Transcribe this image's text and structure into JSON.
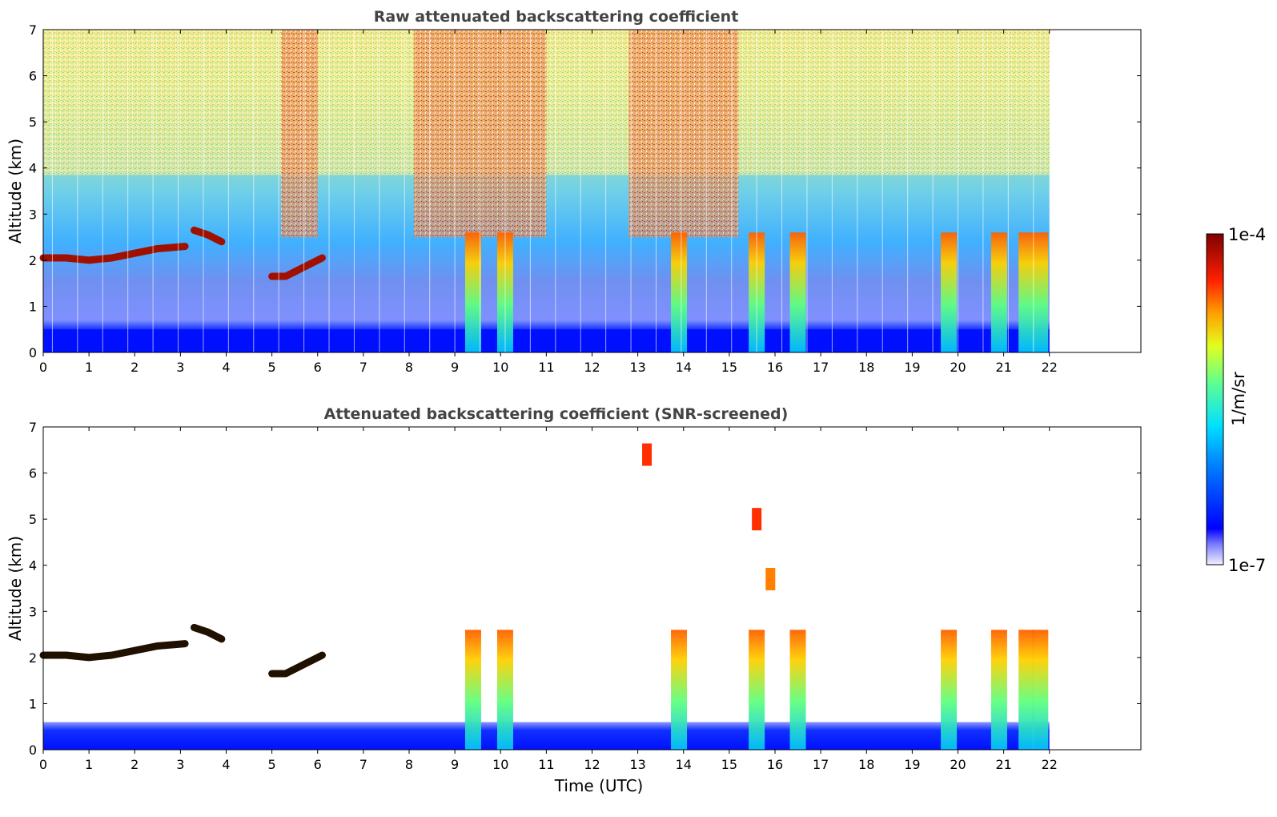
{
  "chart_data": [
    {
      "type": "heatmap",
      "title": "Raw attenuated backscattering coefficient",
      "xlabel": "",
      "ylabel": "Altitude (km)",
      "xlim": [
        0,
        24
      ],
      "ylim": [
        0,
        7
      ],
      "xticks": [
        "0",
        "1",
        "2",
        "3",
        "4",
        "5",
        "6",
        "7",
        "8",
        "9",
        "10",
        "11",
        "12",
        "13",
        "14",
        "15",
        "16",
        "17",
        "18",
        "19",
        "20",
        "21",
        "22"
      ],
      "yticks": [
        "0",
        "1",
        "2",
        "3",
        "4",
        "5",
        "6",
        "7"
      ],
      "data_end_hour": 22,
      "grid": false,
      "features": {
        "boundary_layer_top_km": 0.5,
        "cloud_layer": [
          [
            0,
            2.05
          ],
          [
            0.5,
            2.05
          ],
          [
            1,
            2.0
          ],
          [
            1.5,
            2.05
          ],
          [
            2,
            2.15
          ],
          [
            2.5,
            2.25
          ],
          [
            3.1,
            2.3
          ]
        ],
        "cloud_layer_2": [
          [
            3.3,
            2.65
          ],
          [
            3.6,
            2.55
          ],
          [
            3.9,
            2.4
          ]
        ],
        "cloud_layer_3": [
          [
            5,
            1.65
          ],
          [
            5.3,
            1.65
          ],
          [
            5.7,
            1.85
          ],
          [
            6.1,
            2.05
          ]
        ],
        "plumes_hour": [
          9.4,
          10.1,
          13.9,
          15.6,
          16.5,
          19.8,
          20.9,
          21.5,
          21.8
        ],
        "high_noise_hours": [
          [
            5.2,
            6.0
          ],
          [
            8.1,
            11.0
          ],
          [
            12.8,
            15.2
          ]
        ]
      }
    },
    {
      "type": "heatmap",
      "title": "Attenuated backscattering coefficient (SNR-screened)",
      "xlabel": "Time (UTC)",
      "ylabel": "Altitude (km)",
      "xlim": [
        0,
        24
      ],
      "ylim": [
        0,
        7
      ],
      "xticks": [
        "0",
        "1",
        "2",
        "3",
        "4",
        "5",
        "6",
        "7",
        "8",
        "9",
        "10",
        "11",
        "12",
        "13",
        "14",
        "15",
        "16",
        "17",
        "18",
        "19",
        "20",
        "21",
        "22"
      ],
      "yticks": [
        "0",
        "1",
        "2",
        "3",
        "4",
        "5",
        "6",
        "7"
      ],
      "data_end_hour": 22,
      "grid": false,
      "features": {
        "boundary_layer_top_km": 0.6,
        "isolated_patch_km": [
          [
            15.9,
            3.7
          ],
          [
            15.6,
            5.0
          ],
          [
            13.2,
            6.4
          ]
        ]
      }
    }
  ],
  "colorbar": {
    "label": "1/m/sr",
    "max_label": "1e-4",
    "min_label": "1e-7",
    "scale": "log",
    "colors": [
      "#f0f0ff",
      "#7f7fff",
      "#0000ff",
      "#0060ff",
      "#00c0ff",
      "#40ffc0",
      "#c0ff40",
      "#ffe000",
      "#ff8000",
      "#ff2000",
      "#c00000",
      "#7f0000"
    ]
  }
}
